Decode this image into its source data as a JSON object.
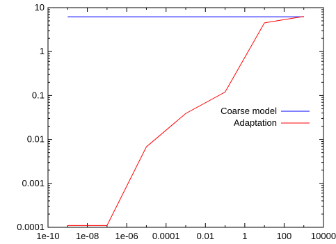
{
  "chart_data": {
    "type": "line",
    "title": "",
    "xlabel": "",
    "ylabel": "",
    "xscale": "log",
    "yscale": "log",
    "xlim": [
      1e-10,
      10000
    ],
    "ylim": [
      0.0001,
      10
    ],
    "x_ticks": [
      {
        "value": 1e-10,
        "label": "1e-10"
      },
      {
        "value": 1e-08,
        "label": "1e-08"
      },
      {
        "value": 1e-06,
        "label": "1e-06"
      },
      {
        "value": 0.0001,
        "label": "0.0001"
      },
      {
        "value": 0.01,
        "label": "0.01"
      },
      {
        "value": 1,
        "label": "1"
      },
      {
        "value": 100,
        "label": "100"
      },
      {
        "value": 10000,
        "label": "10000"
      }
    ],
    "y_ticks": [
      {
        "value": 0.0001,
        "label": "0.0001"
      },
      {
        "value": 0.001,
        "label": "0.001"
      },
      {
        "value": 0.01,
        "label": "0.01"
      },
      {
        "value": 0.1,
        "label": "0.1"
      },
      {
        "value": 1,
        "label": "1"
      },
      {
        "value": 10,
        "label": "10"
      }
    ],
    "grid": false,
    "legend_position": "right",
    "series": [
      {
        "name": "Coarse model",
        "color": "#0000ff",
        "points": [
          [
            1e-09,
            6.2
          ],
          [
            1000,
            6.2
          ]
        ]
      },
      {
        "name": "Adaptation",
        "color": "#ff0000",
        "points": [
          [
            1e-09,
            0.00011
          ],
          [
            1e-07,
            0.00011
          ],
          [
            1e-05,
            0.0068
          ],
          [
            0.001,
            0.039
          ],
          [
            0.1,
            0.12
          ],
          [
            10,
            4.5
          ],
          [
            1000,
            6.3
          ]
        ]
      }
    ]
  }
}
